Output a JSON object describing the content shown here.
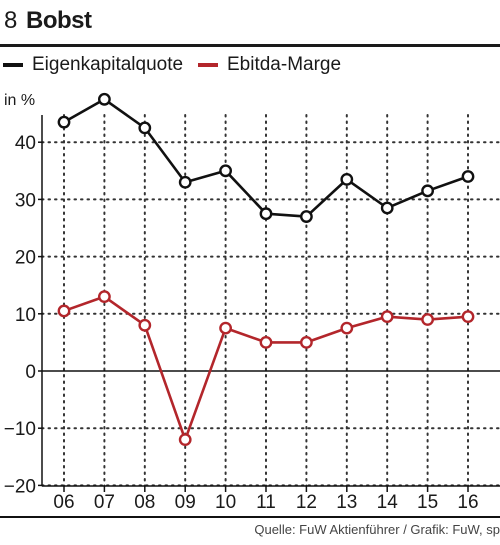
{
  "header": {
    "number": "8",
    "title": "Bobst"
  },
  "legend": {
    "items": [
      {
        "label": "Eigenkapitalquote",
        "color": "#111111"
      },
      {
        "label": "Ebitda-Marge",
        "color": "#b3262b"
      }
    ]
  },
  "unit_label": "in %",
  "source": "Quelle: FuW Aktienführer / Grafik: FuW, sp",
  "chart_data": {
    "type": "line",
    "categories": [
      "06",
      "07",
      "08",
      "09",
      "10",
      "11",
      "12",
      "13",
      "14",
      "15",
      "16"
    ],
    "series": [
      {
        "name": "Eigenkapitalquote",
        "color": "#111111",
        "values": [
          43.5,
          47.5,
          42.5,
          33.0,
          35.0,
          27.5,
          27.0,
          33.5,
          28.5,
          31.5,
          34.0
        ]
      },
      {
        "name": "Ebitda-Marge",
        "color": "#b3262b",
        "values": [
          10.5,
          13.0,
          8.0,
          -12.0,
          7.5,
          5.0,
          5.0,
          7.5,
          9.5,
          9.0,
          9.5
        ]
      }
    ],
    "yticks": [
      40,
      30,
      20,
      10,
      0,
      -10,
      -20
    ],
    "ylim": [
      -20,
      48
    ],
    "grid": true
  }
}
